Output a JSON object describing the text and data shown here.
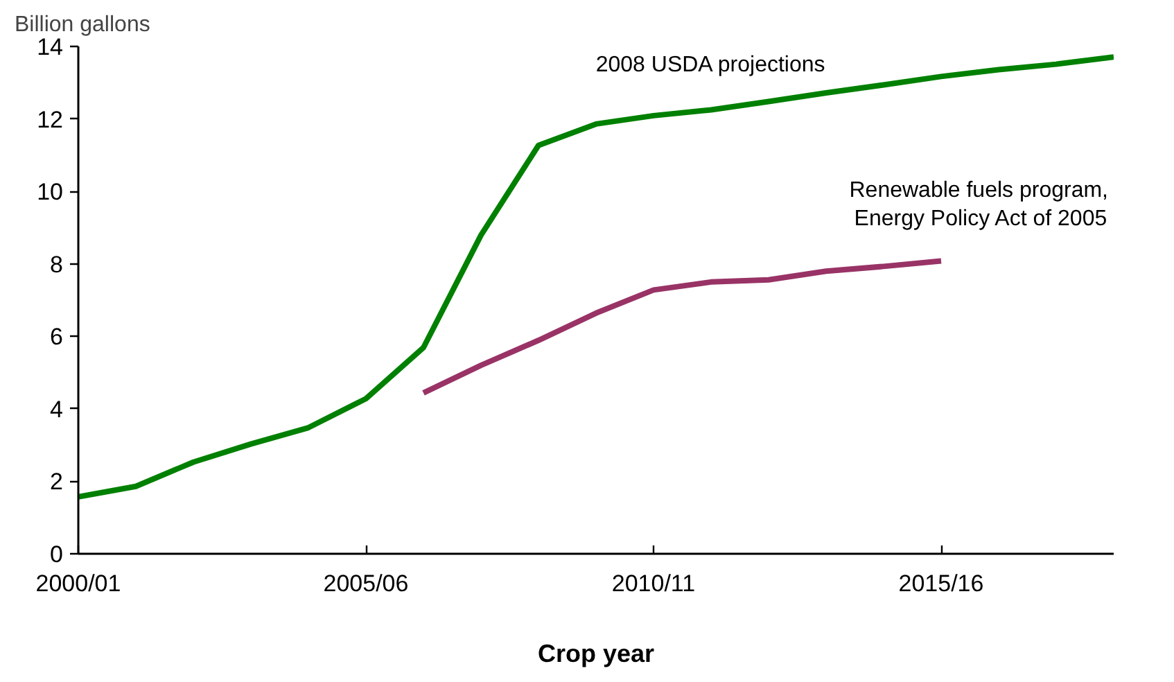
{
  "chart_data": {
    "type": "line",
    "ylabel": "Billion gallons",
    "xlabel": "Crop year",
    "categories": [
      "2000/01",
      null,
      null,
      null,
      null,
      "2005/06",
      null,
      null,
      null,
      null,
      "2010/11",
      null,
      null,
      null,
      null,
      "2015/16",
      null,
      null,
      null
    ],
    "ylim": [
      0,
      14
    ],
    "yticks": [
      0,
      2,
      4,
      6,
      8,
      10,
      12,
      14
    ],
    "grid": false,
    "line_style": "solid",
    "series": [
      {
        "name": "2008 USDA projections",
        "color": "#008000",
        "values": [
          1.57,
          1.86,
          2.53,
          3.03,
          3.48,
          4.28,
          5.69,
          8.79,
          11.27,
          11.86,
          12.09,
          12.25,
          12.48,
          12.72,
          12.94,
          13.17,
          13.36,
          13.51,
          13.71
        ]
      },
      {
        "name": "Renewable fuels program,\nEnergy Policy Act of 2005",
        "color": "#993366",
        "values": [
          null,
          null,
          null,
          null,
          null,
          null,
          4.44,
          5.2,
          5.89,
          6.64,
          7.28,
          7.5,
          7.56,
          7.8,
          7.93,
          8.08,
          null,
          null,
          null
        ]
      }
    ]
  }
}
